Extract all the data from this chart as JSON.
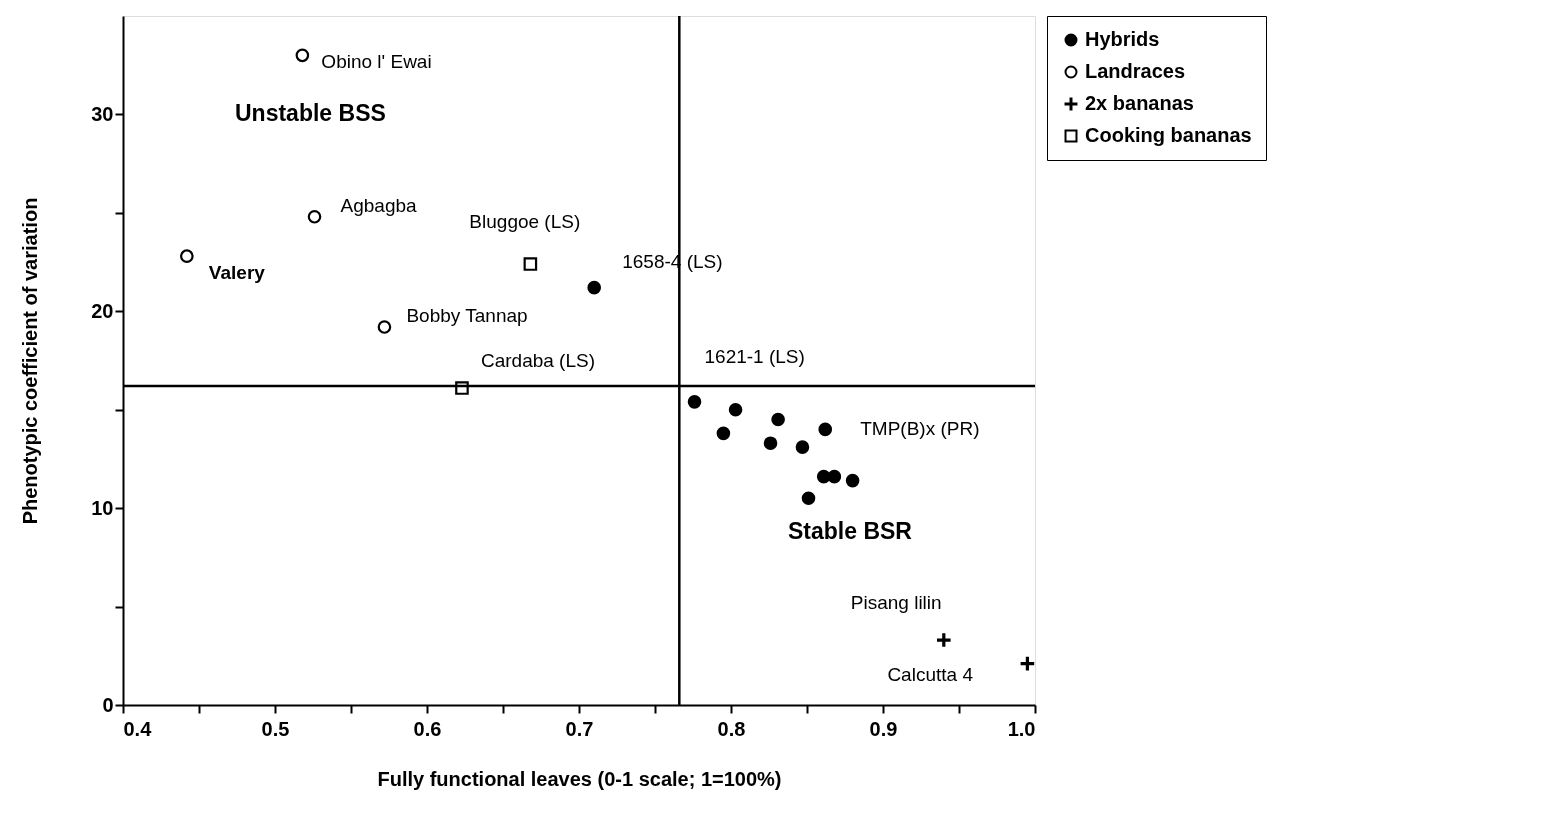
{
  "chart_data": {
    "type": "scatter",
    "xlabel": "Fully functional leaves (0-1 scale; 1=100%)",
    "ylabel": "Phenotypic coefficient of variation",
    "xlim": [
      0.4,
      1.0
    ],
    "xticks": [
      {
        "value": 0.4,
        "label": "0.4"
      },
      {
        "value": 0.45,
        "label": null
      },
      {
        "value": 0.5,
        "label": "0.5"
      },
      {
        "value": 0.55,
        "label": null
      },
      {
        "value": 0.6,
        "label": "0.6"
      },
      {
        "value": 0.65,
        "label": null
      },
      {
        "value": 0.7,
        "label": "0.7"
      },
      {
        "value": 0.75,
        "label": null
      },
      {
        "value": 0.8,
        "label": "0.8"
      },
      {
        "value": 0.85,
        "label": null
      },
      {
        "value": 0.9,
        "label": "0.9"
      },
      {
        "value": 0.95,
        "label": null
      },
      {
        "value": 1.0,
        "label": "1.0"
      }
    ],
    "ylim": [
      0,
      35
    ],
    "yticks": [
      0,
      {
        "value": 5,
        "label": null
      },
      10,
      {
        "value": 15,
        "label": null
      },
      20,
      {
        "value": 25,
        "label": null
      },
      30
    ],
    "grid": false,
    "legend": "top right",
    "series": [
      {
        "name": "Hybrids",
        "color": "#000000",
        "marker": "circle",
        "x": [
          0.71,
          0.776,
          0.803,
          0.795,
          0.831,
          0.826,
          0.847,
          0.862,
          0.861,
          0.868,
          0.88,
          0.851
        ],
        "values": [
          21.2,
          15.4,
          15.0,
          13.8,
          14.5,
          13.3,
          13.1,
          14.0,
          11.6,
          11.6,
          11.4,
          10.5
        ]
      },
      {
        "name": "Landraces",
        "color": "#000000",
        "marker": "circle",
        "x": [
          0.518,
          0.526,
          0.442,
          0.572
        ],
        "values": [
          33.0,
          24.8,
          22.8,
          19.2
        ]
      },
      {
        "name": "2x bananas",
        "color": "#000000",
        "marker": "cross",
        "x": [
          0.94,
          0.995
        ],
        "values": [
          3.3,
          2.1
        ]
      },
      {
        "name": "Cooking bananas",
        "color": "#000000",
        "marker": "square",
        "x": [
          0.668,
          0.623
        ],
        "values": [
          22.4,
          16.1
        ]
      }
    ],
    "ref_lines": [
      {
        "axis": "x",
        "value": 0.766,
        "label": null,
        "color": "#000000"
      },
      {
        "axis": "y",
        "value": 16.2,
        "label": null,
        "color": "#000000"
      }
    ],
    "annotations": [
      {
        "text": "Obino l' Ewai",
        "x": 0.518,
        "y": 33.0
      },
      {
        "text": "Agbagba",
        "x": 0.526,
        "y": 24.8
      },
      {
        "text": "Valery",
        "x": 0.442,
        "y": 22.8
      },
      {
        "text": "Bobby Tannap",
        "x": 0.572,
        "y": 19.2
      },
      {
        "text": "Bluggoe (LS)",
        "x": 0.668,
        "y": 22.4
      },
      {
        "text": "Cardaba (LS)",
        "x": 0.623,
        "y": 16.1
      },
      {
        "text": "1658-4 (LS)",
        "x": 0.71,
        "y": 21.2
      },
      {
        "text": "1621-1 (LS)",
        "x": 0.776,
        "y": 15.4
      },
      {
        "text": "TMP(B)x (PR)",
        "x": 0.862,
        "y": 14.0
      },
      {
        "text": "Pisang lilin",
        "x": 0.94,
        "y": 3.3
      },
      {
        "text": "Calcutta 4",
        "x": 0.995,
        "y": 2.1
      },
      "Unstable BSS",
      "Stable BSR"
    ]
  }
}
